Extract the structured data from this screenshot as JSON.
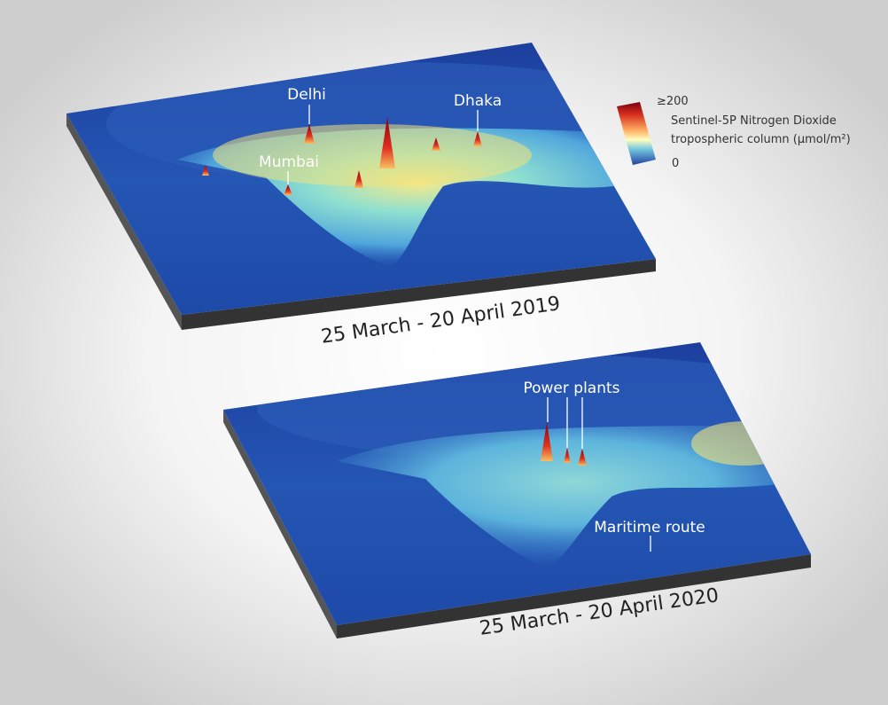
{
  "legend": {
    "max_label": "≥200",
    "min_label": "0",
    "title_line1": "Sentinel-5P Nitrogen Dioxide",
    "title_line2": "tropospheric column (µmol/m²)"
  },
  "maps": [
    {
      "date_label": "25 March - 20 April 2019",
      "labels": [
        "Delhi",
        "Dhaka",
        "Mumbai"
      ]
    },
    {
      "date_label": "25 March - 20 April 2020",
      "labels": [
        "Power plants",
        "Maritime route"
      ]
    }
  ]
}
